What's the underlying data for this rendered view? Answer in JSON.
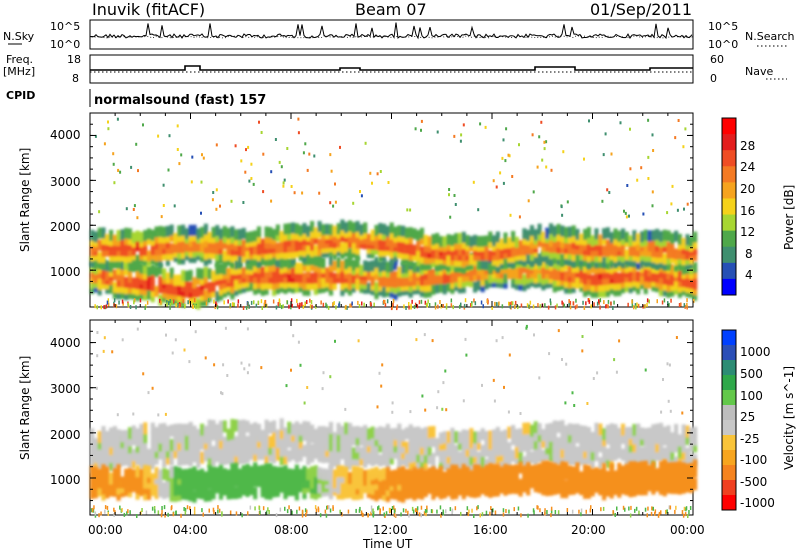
{
  "header": {
    "station": "Inuvik (fitACF)",
    "beam": "Beam 07",
    "date": "01/Sep/2011"
  },
  "nsky_panel": {
    "label": "N.Sky",
    "left_ticks": [
      "10^5",
      "10^0"
    ],
    "right_ticks": [
      "10^5",
      "10^0"
    ],
    "right_label": "N.Search"
  },
  "freq_panel": {
    "label_line1": "Freq.",
    "label_line2": "[MHz]",
    "left_ticks": [
      "18",
      "8"
    ],
    "right_ticks": [
      "60",
      "0"
    ],
    "right_label": "Nave"
  },
  "cpid_panel": {
    "label": "CPID",
    "program": "normalsound (fast) 157"
  },
  "colors": {
    "colorbar_power": [
      "#0000ff",
      "#2650b5",
      "#3f8f6f",
      "#4fa84a",
      "#a7d632",
      "#f5d21a",
      "#f6a31e",
      "#f47a23",
      "#ef4d24",
      "#e31d1d",
      "#ff0000"
    ],
    "colorbar_velocity": [
      "#ff0000",
      "#f04020",
      "#f5831f",
      "#f7a51f",
      "#f9c43a",
      "#c8c8c8",
      "#bdbdbd",
      "#63c84a",
      "#2fa84a",
      "#2d8c74",
      "#2b4fb7",
      "#0040ff"
    ]
  },
  "chart_data": [
    {
      "type": "heatmap",
      "title": "",
      "xlabel": "Time UT",
      "ylabel": "Slant Range [km]",
      "xlim": [
        "00:00",
        "24:00"
      ],
      "x_ticks": [
        "00:00",
        "04:00",
        "08:00",
        "12:00",
        "16:00",
        "20:00",
        "00:00"
      ],
      "ylim": [
        180,
        4500
      ],
      "y_ticks": [
        1000,
        2000,
        3000,
        4000
      ],
      "colorbar": {
        "label": "Power [dB]",
        "ticks": [
          4,
          8,
          12,
          16,
          20,
          24,
          28
        ],
        "range": [
          0,
          30
        ]
      },
      "bands": [
        {
          "name": "lower",
          "center_km": [
            900,
            760,
            560,
            900,
            900,
            900,
            800,
            880,
            1000,
            1000,
            850,
            950,
            760
          ],
          "power_db": [
            24,
            28,
            28,
            26,
            28,
            26,
            24,
            26,
            22,
            24,
            28,
            26,
            28
          ]
        },
        {
          "name": "upper",
          "center_km": [
            1500,
            1500,
            1600,
            1500,
            1600,
            1700,
            1600,
            1400,
            1400,
            1600,
            1500,
            1500,
            1400
          ],
          "power_db": [
            26,
            28,
            24,
            26,
            26,
            26,
            26,
            28,
            26,
            24,
            26,
            24,
            26
          ]
        }
      ]
    },
    {
      "type": "heatmap",
      "title": "",
      "xlabel": "Time UT",
      "ylabel": "Slant Range [km]",
      "xlim": [
        "00:00",
        "24:00"
      ],
      "x_ticks": [
        "00:00",
        "04:00",
        "08:00",
        "12:00",
        "16:00",
        "20:00",
        "00:00"
      ],
      "ylim": [
        180,
        4500
      ],
      "y_ticks": [
        1000,
        2000,
        3000,
        4000
      ],
      "colorbar": {
        "label": "Velocity [m s^-1]",
        "ticks": [
          1000,
          500,
          100,
          25,
          -25,
          -100,
          -500,
          -1000
        ]
      },
      "bands": [
        {
          "name": "ground_scatter",
          "center_km": [
            1600,
            1700,
            1750,
            1800,
            1800,
            1700,
            1700,
            1600,
            1600,
            1800,
            1700,
            1700,
            1700
          ],
          "velocity_ms": [
            0,
            0,
            0,
            0,
            0,
            0,
            0,
            0,
            0,
            0,
            0,
            0,
            0
          ]
        },
        {
          "name": "lower",
          "center_km": [
            900,
            900,
            850,
            950,
            900,
            900,
            850,
            900,
            950,
            1000,
            900,
            1000,
            1000
          ],
          "velocity_ms": [
            -100,
            -100,
            150,
            200,
            150,
            -50,
            -100,
            -150,
            -200,
            -150,
            -200,
            -200,
            -200
          ]
        }
      ]
    }
  ]
}
